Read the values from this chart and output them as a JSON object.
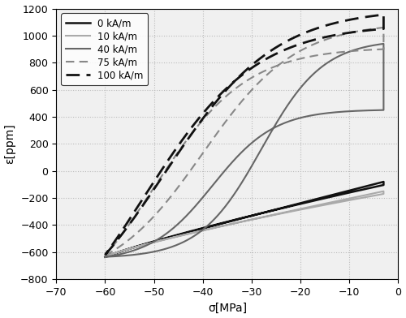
{
  "xlabel": "σ[MPa]",
  "ylabel": "ε[ppm]",
  "xlim": [
    -70,
    0
  ],
  "ylim": [
    -800,
    1200
  ],
  "xticks": [
    -70,
    -60,
    -50,
    -40,
    -30,
    -20,
    -10,
    0
  ],
  "yticks": [
    -800,
    -600,
    -400,
    -200,
    0,
    200,
    400,
    600,
    800,
    1000,
    1200
  ],
  "legend_entries": [
    "0 kA/m",
    "10 kA/m",
    "40 kA/m",
    "75 kA/m",
    "100 kA/m"
  ],
  "curve_styles": [
    {
      "color": "#111111",
      "linestyle": "solid",
      "linewidth": 1.8
    },
    {
      "color": "#aaaaaa",
      "linestyle": "solid",
      "linewidth": 1.5
    },
    {
      "color": "#666666",
      "linestyle": "solid",
      "linewidth": 1.5
    },
    {
      "color": "#888888",
      "linestyle": "dashed",
      "linewidth": 1.5
    },
    {
      "color": "#111111",
      "linestyle": "dashed",
      "linewidth": 2.0
    }
  ],
  "background_color": "#f0f0f0",
  "grid_color": "#bbbbbb",
  "grid_linestyle": "dotted"
}
